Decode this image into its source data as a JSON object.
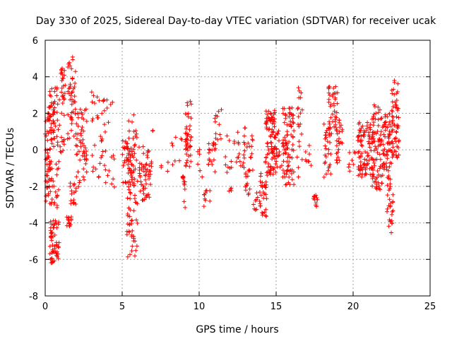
{
  "chart_data": {
    "type": "scatter",
    "title": "Day 330 of 2025, Sidereal Day-to-day VTEC variation (SDTVAR) for receiver ucak",
    "xlabel": "GPS time / hours",
    "ylabel": "SDTVAR / TECUs",
    "xlim": [
      0,
      25
    ],
    "ylim": [
      -8,
      6
    ],
    "x_ticks": [
      0,
      5,
      10,
      15,
      20,
      25
    ],
    "y_ticks": [
      -8,
      -6,
      -4,
      -2,
      0,
      2,
      4,
      6
    ],
    "grid": true,
    "marker": "plus",
    "marker_color": "#ff0000",
    "series": [
      {
        "name": "SDTVAR",
        "clusters": [
          {
            "x_range": [
              0.0,
              0.4
            ],
            "y_range": [
              -3.3,
              2.5
            ],
            "n": 60
          },
          {
            "x_range": [
              0.3,
              0.9
            ],
            "y_range": [
              -6.3,
              -3.8
            ],
            "n": 55
          },
          {
            "x_range": [
              0.3,
              0.9
            ],
            "y_range": [
              -3.5,
              3.8
            ],
            "n": 70
          },
          {
            "x_range": [
              0.9,
              1.3
            ],
            "y_range": [
              -0.2,
              4.5
            ],
            "n": 35
          },
          {
            "x_range": [
              1.4,
              1.7
            ],
            "y_range": [
              -4.2,
              -3.6
            ],
            "n": 15
          },
          {
            "x_range": [
              1.4,
              2.0
            ],
            "y_range": [
              0.5,
              5.2
            ],
            "n": 45
          },
          {
            "x_range": [
              1.6,
              2.0
            ],
            "y_range": [
              -3.0,
              -1.8
            ],
            "n": 15
          },
          {
            "x_range": [
              2.0,
              2.7
            ],
            "y_range": [
              -2.2,
              2.3
            ],
            "n": 55
          },
          {
            "x_range": [
              3.0,
              3.6
            ],
            "y_range": [
              -1.5,
              3.2
            ],
            "n": 20
          },
          {
            "x_range": [
              3.6,
              4.5
            ],
            "y_range": [
              -2.2,
              3.0
            ],
            "n": 30
          },
          {
            "x_range": [
              5.0,
              5.8
            ],
            "y_range": [
              -2.0,
              0.5
            ],
            "n": 45
          },
          {
            "x_range": [
              5.3,
              6.0
            ],
            "y_range": [
              -5.9,
              -2.2
            ],
            "n": 40
          },
          {
            "x_range": [
              5.4,
              6.0
            ],
            "y_range": [
              -2.5,
              2.0
            ],
            "n": 35
          },
          {
            "x_range": [
              6.1,
              6.9
            ],
            "y_range": [
              -2.8,
              0.2
            ],
            "n": 55
          },
          {
            "x_range": [
              6.9,
              7.0
            ],
            "y_range": [
              1.0,
              1.3
            ],
            "n": 2
          },
          {
            "x_range": [
              7.5,
              8.0
            ],
            "y_range": [
              -1.3,
              -0.2
            ],
            "n": 4
          },
          {
            "x_range": [
              8.2,
              8.9
            ],
            "y_range": [
              -1.3,
              1.0
            ],
            "n": 8
          },
          {
            "x_range": [
              8.9,
              9.1
            ],
            "y_range": [
              -3.4,
              -1.4
            ],
            "n": 12
          },
          {
            "x_range": [
              9.1,
              9.5
            ],
            "y_range": [
              -1.0,
              2.9
            ],
            "n": 45
          },
          {
            "x_range": [
              9.9,
              10.2
            ],
            "y_range": [
              -1.5,
              0.2
            ],
            "n": 6
          },
          {
            "x_range": [
              10.3,
              10.7
            ],
            "y_range": [
              -3.1,
              -2.2
            ],
            "n": 10
          },
          {
            "x_range": [
              10.6,
              11.2
            ],
            "y_range": [
              -1.5,
              0.6
            ],
            "n": 20
          },
          {
            "x_range": [
              11.0,
              11.5
            ],
            "y_range": [
              0.5,
              2.4
            ],
            "n": 12
          },
          {
            "x_range": [
              11.7,
              12.3
            ],
            "y_range": [
              -2.3,
              0.8
            ],
            "n": 15
          },
          {
            "x_range": [
              12.4,
              13.0
            ],
            "y_range": [
              -1.0,
              1.2
            ],
            "n": 20
          },
          {
            "x_range": [
              12.9,
              13.3
            ],
            "y_range": [
              -2.5,
              -1.8
            ],
            "n": 8
          },
          {
            "x_range": [
              13.0,
              13.5
            ],
            "y_range": [
              -1.5,
              0.8
            ],
            "n": 18
          },
          {
            "x_range": [
              13.5,
              14.0
            ],
            "y_range": [
              -3.3,
              -2.3
            ],
            "n": 10
          },
          {
            "x_range": [
              13.9,
              14.4
            ],
            "y_range": [
              -3.8,
              -1.2
            ],
            "n": 30
          },
          {
            "x_range": [
              14.3,
              15.0
            ],
            "y_range": [
              -1.5,
              2.2
            ],
            "n": 90
          },
          {
            "x_range": [
              15.0,
              15.5
            ],
            "y_range": [
              -1.0,
              1.2
            ],
            "n": 20
          },
          {
            "x_range": [
              15.4,
              16.2
            ],
            "y_range": [
              -2.0,
              2.3
            ],
            "n": 80
          },
          {
            "x_range": [
              16.3,
              16.7
            ],
            "y_range": [
              -1.5,
              3.5
            ],
            "n": 20
          },
          {
            "x_range": [
              16.9,
              17.3
            ],
            "y_range": [
              -1.0,
              0.5
            ],
            "n": 8
          },
          {
            "x_range": [
              17.4,
              17.7
            ],
            "y_range": [
              -3.3,
              -2.4
            ],
            "n": 12
          },
          {
            "x_range": [
              18.1,
              18.6
            ],
            "y_range": [
              -1.5,
              1.5
            ],
            "n": 30
          },
          {
            "x_range": [
              18.4,
              19.0
            ],
            "y_range": [
              1.0,
              3.6
            ],
            "n": 40
          },
          {
            "x_range": [
              18.9,
              19.3
            ],
            "y_range": [
              -0.8,
              1.8
            ],
            "n": 25
          },
          {
            "x_range": [
              19.7,
              20.2
            ],
            "y_range": [
              -1.2,
              0.0
            ],
            "n": 8
          },
          {
            "x_range": [
              20.3,
              21.3
            ],
            "y_range": [
              -1.5,
              1.5
            ],
            "n": 90
          },
          {
            "x_range": [
              21.2,
              21.9
            ],
            "y_range": [
              -2.2,
              2.5
            ],
            "n": 80
          },
          {
            "x_range": [
              21.9,
              22.5
            ],
            "y_range": [
              -1.5,
              2.0
            ],
            "n": 60
          },
          {
            "x_range": [
              22.2,
              22.6
            ],
            "y_range": [
              -4.6,
              -1.5
            ],
            "n": 30
          },
          {
            "x_range": [
              22.5,
              23.0
            ],
            "y_range": [
              -0.5,
              3.8
            ],
            "n": 60
          }
        ]
      }
    ]
  }
}
